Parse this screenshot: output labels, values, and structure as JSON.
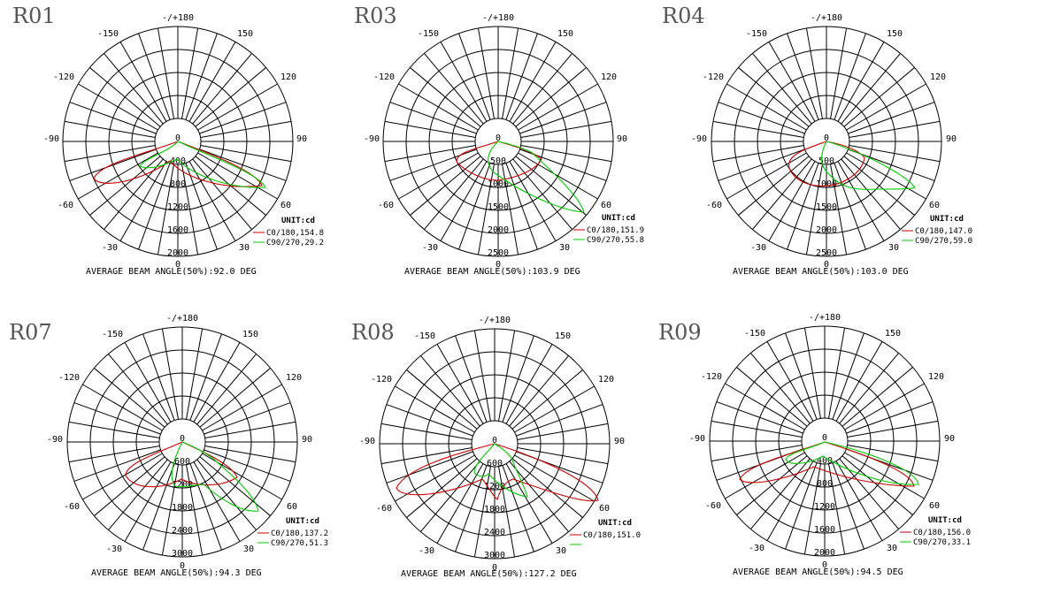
{
  "panels": [
    {
      "code": "R01",
      "radial_ticks": [
        "0",
        "400",
        "800",
        "1200",
        "1600",
        "2000"
      ],
      "angle_labels": {
        "top": "-/+180",
        "l150": "-150",
        "r150": "150",
        "l120": "-120",
        "r120": "120",
        "l90": "-90",
        "r90": "90",
        "l60": "-60",
        "r60": "60",
        "l30": "-30",
        "r30": "30",
        "bottom": "0"
      },
      "unit": "UNIT:cd",
      "legend": [
        "C0/180,154.8",
        "C90/270,29.2"
      ],
      "beam": "AVERAGE BEAM ANGLE(50%):92.0 DEG"
    },
    {
      "code": "R03",
      "radial_ticks": [
        "0",
        "500",
        "1000",
        "1500",
        "2000",
        "2500"
      ],
      "angle_labels": {
        "top": "-/+180",
        "l150": "-150",
        "r150": "150",
        "l120": "-120",
        "r120": "120",
        "l90": "-90",
        "r90": "90",
        "l60": "-60",
        "r60": "60",
        "l30": "-30",
        "r30": "30",
        "bottom": "0"
      },
      "unit": "UNIT:cd",
      "legend": [
        "C0/180,151.9",
        "C90/270,55.8"
      ],
      "beam": "AVERAGE BEAM ANGLE(50%):103.9 DEG"
    },
    {
      "code": "R04",
      "radial_ticks": [
        "0",
        "500",
        "1000",
        "1500",
        "2000",
        "2500"
      ],
      "angle_labels": {
        "top": "-/+180",
        "l150": "-150",
        "r150": "150",
        "l120": "-120",
        "r120": "120",
        "l90": "-90",
        "r90": "90",
        "l60": "-60",
        "r60": "60",
        "l30": "-30",
        "r30": "30",
        "bottom": "0"
      },
      "unit": "UNIT:cd",
      "legend": [
        "C0/180,147.0",
        "C90/270,59.0"
      ],
      "beam": "AVERAGE BEAM ANGLE(50%):103.0 DEG"
    },
    {
      "code": "R07",
      "radial_ticks": [
        "0",
        "600",
        "1200",
        "1800",
        "2400",
        "3000"
      ],
      "angle_labels": {
        "top": "-/+180",
        "l150": "-150",
        "r150": "150",
        "l120": "-120",
        "r120": "120",
        "l90": "-90",
        "r90": "90",
        "l60": "-60",
        "r60": "60",
        "l30": "-30",
        "r30": "30",
        "bottom": "0"
      },
      "unit": "UNIT:cd",
      "legend": [
        "C0/180,137.2",
        "C90/270,51.3"
      ],
      "beam": "AVERAGE BEAM ANGLE(50%):94.3 DEG"
    },
    {
      "code": "R08",
      "radial_ticks": [
        "0",
        "600",
        "1200",
        "1800",
        "2400",
        "3000"
      ],
      "angle_labels": {
        "top": "-/+180",
        "l150": "-150",
        "r150": "150",
        "l120": "-120",
        "r120": "120",
        "l90": "-90",
        "r90": "90",
        "l60": "-60",
        "r60": "60",
        "l30": "-30",
        "r30": "30",
        "bottom": "0"
      },
      "unit": "UNIT:cd",
      "legend": [
        "C0/180,151.0",
        ""
      ],
      "beam": "AVERAGE BEAM ANGLE(50%):127.2 DEG"
    },
    {
      "code": "R09",
      "radial_ticks": [
        "0",
        "400",
        "800",
        "1200",
        "1600",
        "2000"
      ],
      "angle_labels": {
        "top": "-/+180",
        "l150": "-150",
        "r150": "150",
        "l120": "-120",
        "r120": "120",
        "l90": "-90",
        "r90": "90",
        "l60": "-60",
        "r60": "60",
        "l30": "-30",
        "r30": "30",
        "bottom": "0"
      },
      "unit": "UNIT:cd",
      "legend": [
        "C0/180,156.0",
        "C90/270,33.1"
      ],
      "beam": "AVERAGE BEAM ANGLE(50%):94.5 DEG"
    }
  ],
  "colors": {
    "c0": "#cc0000",
    "c90": "#00cc00",
    "grid": "#000000"
  }
}
